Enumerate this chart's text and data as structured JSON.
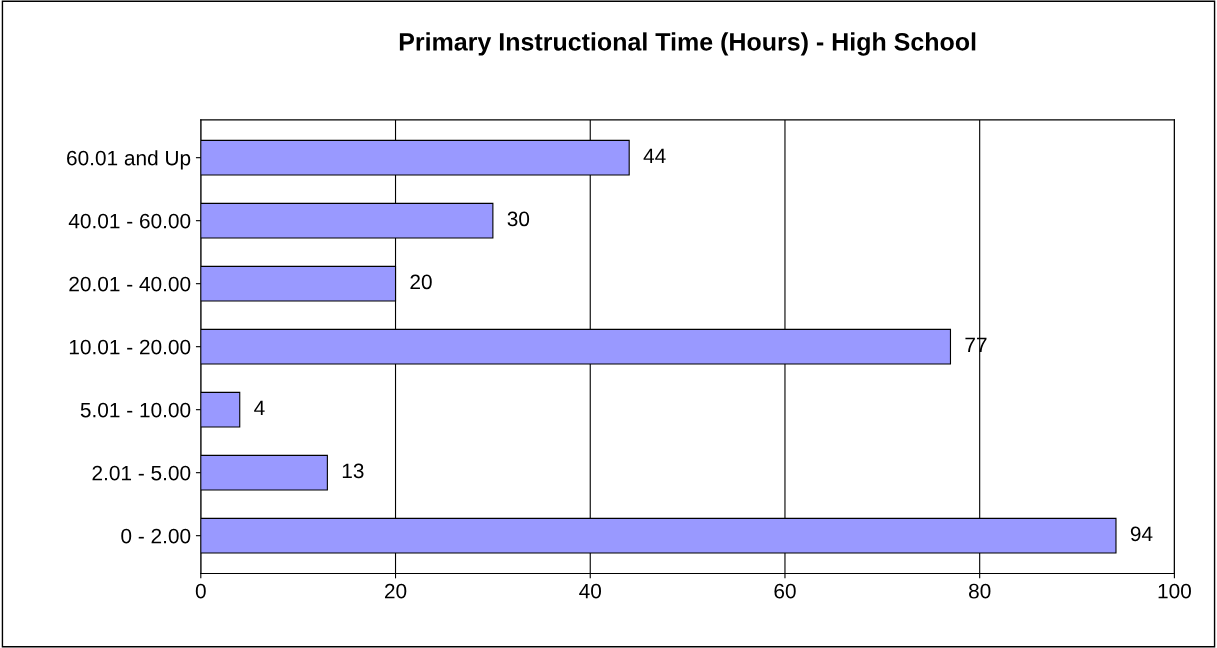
{
  "chart_data": {
    "type": "bar",
    "orientation": "horizontal",
    "title": "Primary Instructional Time (Hours) - High School",
    "categories": [
      "60.01 and Up",
      "40.01 - 60.00",
      "20.01 - 40.00",
      "10.01 - 20.00",
      "5.01 - 10.00",
      "2.01 - 5.00",
      "0 - 2.00"
    ],
    "values": [
      44,
      30,
      20,
      77,
      4,
      13,
      94
    ],
    "color": "#9999ff",
    "xlim": [
      0,
      100
    ],
    "xticks": [
      0,
      20,
      40,
      60,
      80,
      100
    ],
    "grid": "x",
    "data_labels": true
  }
}
